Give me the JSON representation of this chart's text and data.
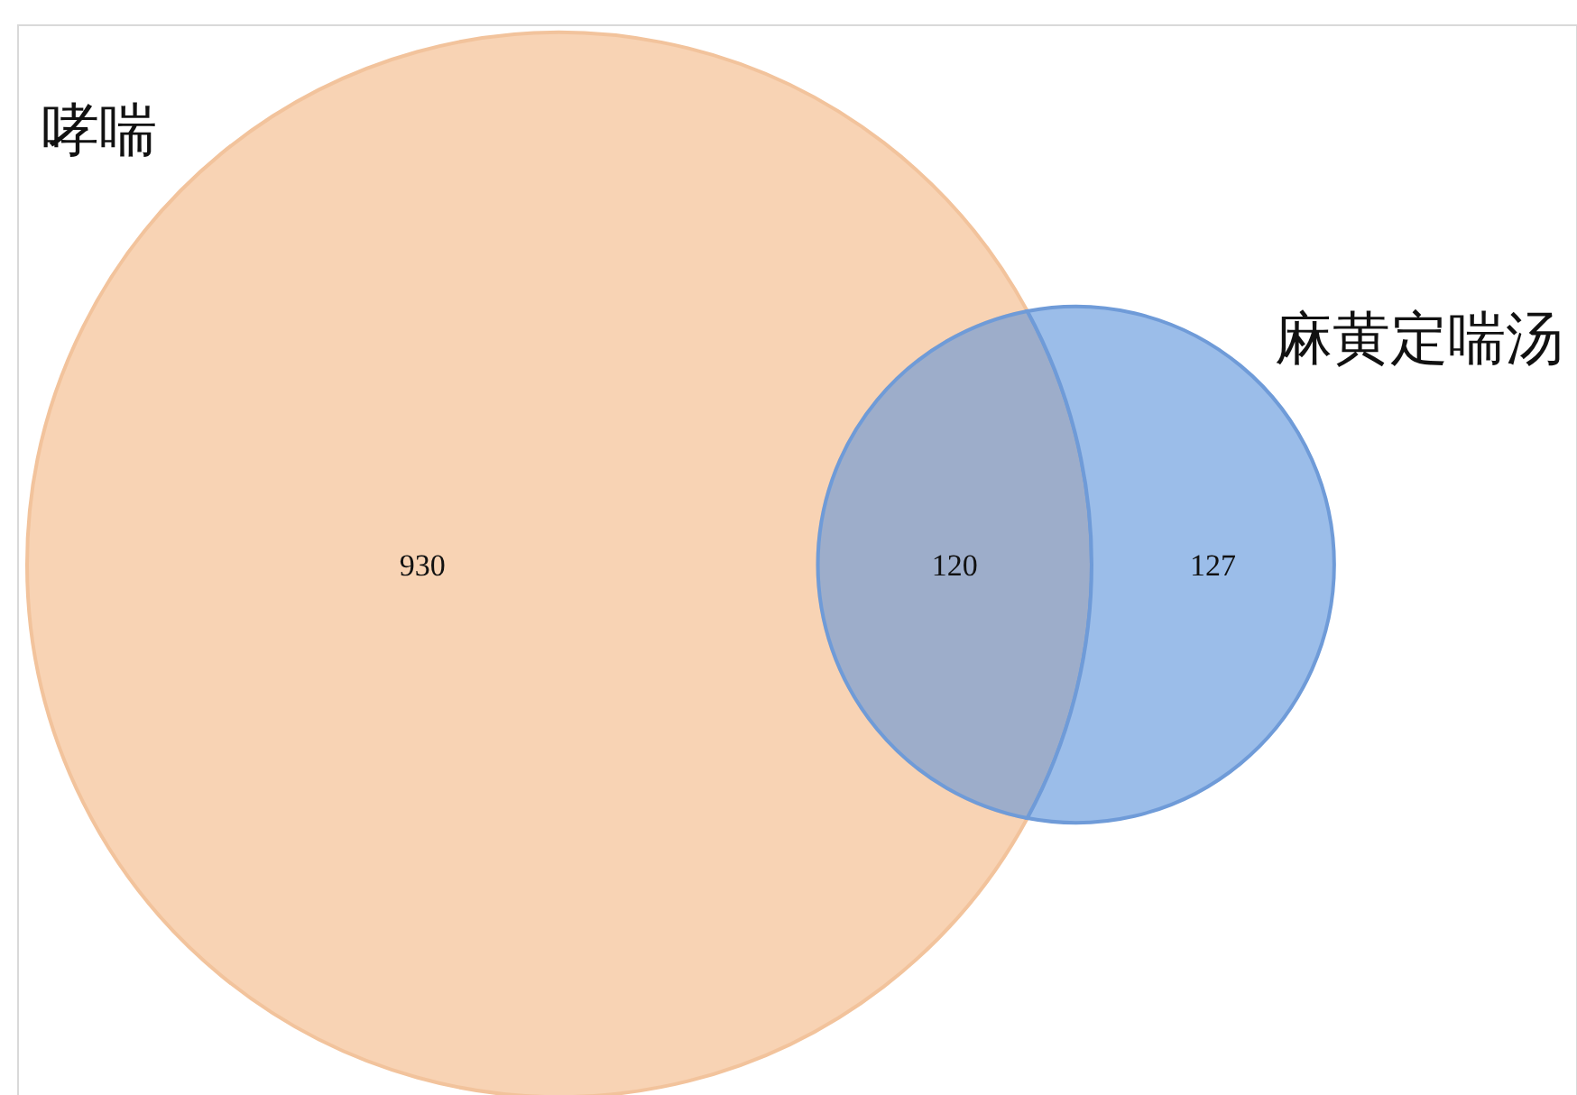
{
  "chart_data": {
    "type": "other",
    "categories": [
      null,
      null,
      null
    ],
    "values": [
      930,
      120,
      127
    ],
    "colors": [
      "#f8d3b4",
      "#9dadca",
      "#9bbde9"
    ],
    "annotations": [
      "哮喘",
      "麻黄定喘汤"
    ],
    "data_labels": true
  }
}
